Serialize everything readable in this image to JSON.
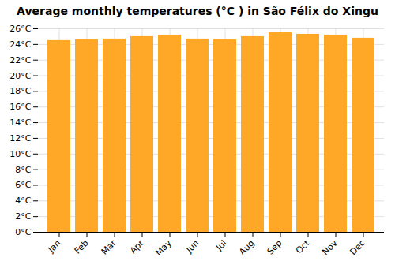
{
  "chart_data": {
    "type": "bar",
    "title": "Average monthly temperatures (°C ) in São Félix do Xingu",
    "categories": [
      "Jan",
      "Feb",
      "Mar",
      "Apr",
      "May",
      "Jun",
      "Jul",
      "Aug",
      "Sep",
      "Oct",
      "Nov",
      "Dec"
    ],
    "values": [
      24.5,
      24.6,
      24.7,
      25.0,
      25.2,
      24.7,
      24.6,
      25.0,
      25.5,
      25.3,
      25.2,
      24.8
    ],
    "color": "#FFA726",
    "ylim": [
      0,
      26
    ],
    "yticks": [
      {
        "value": 0,
        "label": "0°C"
      },
      {
        "value": 2,
        "label": "2°C"
      },
      {
        "value": 4,
        "label": "4°C"
      },
      {
        "value": 6,
        "label": "6°C"
      },
      {
        "value": 8,
        "label": "8°C"
      },
      {
        "value": 10,
        "label": "10°C"
      },
      {
        "value": 12,
        "label": "12°C"
      },
      {
        "value": 14,
        "label": "14°C"
      },
      {
        "value": 16,
        "label": "16°C"
      },
      {
        "value": 18,
        "label": "18°C"
      },
      {
        "value": 20,
        "label": "20°C"
      },
      {
        "value": 22,
        "label": "22°C"
      },
      {
        "value": 24,
        "label": "24°C"
      },
      {
        "value": 26,
        "label": "26°C"
      }
    ],
    "grid": true
  }
}
